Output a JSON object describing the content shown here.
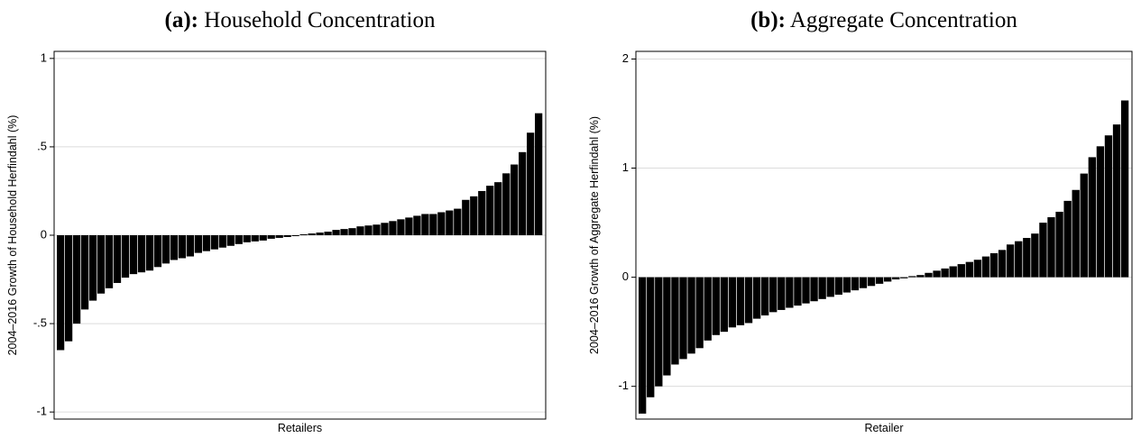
{
  "chart_data": [
    {
      "type": "bar",
      "panel_label": "(a):",
      "title": "Household Concentration",
      "y_label": "2004–2016 Growth of Household Herfindahl (%)",
      "x_label": "Retailers",
      "color": "#000000",
      "grid": true,
      "ylim": [
        -1.04,
        1.04
      ],
      "yticks": [
        -1,
        {
          "value": -0.5,
          "label": "-.5"
        },
        0,
        {
          "value": 0.5,
          "label": ".5"
        },
        1
      ],
      "values": [
        -0.65,
        -0.6,
        -0.5,
        -0.42,
        -0.37,
        -0.33,
        -0.3,
        -0.27,
        -0.24,
        -0.22,
        -0.21,
        -0.2,
        -0.18,
        -0.16,
        -0.14,
        -0.13,
        -0.12,
        -0.1,
        -0.09,
        -0.08,
        -0.07,
        -0.06,
        -0.05,
        -0.04,
        -0.035,
        -0.03,
        -0.02,
        -0.015,
        -0.01,
        -0.005,
        0.005,
        0.01,
        0.015,
        0.02,
        0.03,
        0.035,
        0.04,
        0.05,
        0.055,
        0.06,
        0.07,
        0.08,
        0.09,
        0.1,
        0.11,
        0.12,
        0.12,
        0.13,
        0.14,
        0.15,
        0.2,
        0.22,
        0.25,
        0.28,
        0.3,
        0.35,
        0.4,
        0.47,
        0.58,
        0.69
      ]
    },
    {
      "type": "bar",
      "panel_label": "(b):",
      "title": "Aggregate Concentration",
      "y_label": "2004–2016 Growth of Aggregate Herfindahl (%)",
      "x_label": "Retailer",
      "color": "#000000",
      "grid": true,
      "ylim": [
        -1.3,
        2.07
      ],
      "yticks": [
        -1,
        0,
        1,
        2
      ],
      "values": [
        -1.25,
        -1.1,
        -1.0,
        -0.9,
        -0.8,
        -0.75,
        -0.7,
        -0.65,
        -0.58,
        -0.53,
        -0.5,
        -0.46,
        -0.44,
        -0.42,
        -0.38,
        -0.35,
        -0.32,
        -0.3,
        -0.28,
        -0.26,
        -0.24,
        -0.22,
        -0.2,
        -0.18,
        -0.16,
        -0.14,
        -0.12,
        -0.1,
        -0.08,
        -0.06,
        -0.04,
        -0.02,
        -0.01,
        0.01,
        0.02,
        0.04,
        0.06,
        0.08,
        0.1,
        0.12,
        0.14,
        0.16,
        0.19,
        0.22,
        0.25,
        0.3,
        0.33,
        0.36,
        0.4,
        0.5,
        0.55,
        0.6,
        0.7,
        0.8,
        0.95,
        1.1,
        1.2,
        1.3,
        1.4,
        1.62
      ]
    }
  ]
}
